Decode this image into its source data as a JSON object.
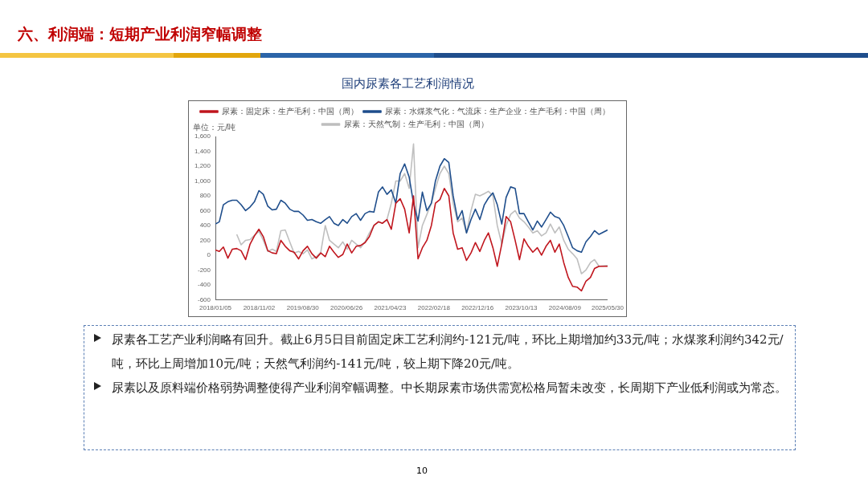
{
  "chart_data": {
    "type": "line",
    "title": "六、利润端：短期产业利润窄幅调整",
    "subtitle": "国内尿素各工艺利润情况",
    "ylabel": "单位：元/吨",
    "x": [
      "2018-01-05",
      "2018-02",
      "2018-03",
      "2018-04",
      "2018-05",
      "2018-06",
      "2018-07",
      "2018-08",
      "2018-09",
      "2018-10",
      "2018-11",
      "2018-12",
      "2019-01",
      "2019-02",
      "2019-03",
      "2019-04",
      "2019-05",
      "2019-06",
      "2019-07",
      "2019-08",
      "2019-09",
      "2019-10",
      "2019-11",
      "2019-12",
      "2020-01",
      "2020-02",
      "2020-03",
      "2020-04",
      "2020-05",
      "2020-06",
      "2020-07",
      "2020-08",
      "2020-09",
      "2020-10",
      "2020-11",
      "2020-12",
      "2021-01",
      "2021-02",
      "2021-03",
      "2021-04",
      "2021-05",
      "2021-06",
      "2021-07",
      "2021-08",
      "2021-09",
      "2021-10",
      "2021-11",
      "2021-12",
      "2022-01",
      "2022-02",
      "2022-03",
      "2022-04",
      "2022-05",
      "2022-06",
      "2022-07",
      "2022-08",
      "2022-09",
      "2022-10",
      "2022-11",
      "2022-12",
      "2023-01",
      "2023-02",
      "2023-03",
      "2023-04",
      "2023-05",
      "2023-06",
      "2023-07",
      "2023-08",
      "2023-09",
      "2023-10",
      "2023-11",
      "2023-12",
      "2024-01",
      "2024-02",
      "2024-03",
      "2024-04",
      "2024-05",
      "2024-06",
      "2024-07",
      "2024-08",
      "2024-09",
      "2024-10",
      "2024-11",
      "2024-12",
      "2025-01",
      "2025-02",
      "2025-03",
      "2025-04",
      "2025-05-30"
    ],
    "series": [
      {
        "name": "尿素：固定床：生产毛利：中国（周）",
        "color": "#c0161e",
        "values": [
          70,
          50,
          110,
          -40,
          80,
          90,
          60,
          -60,
          150,
          260,
          350,
          250,
          60,
          30,
          20,
          200,
          120,
          60,
          40,
          -50,
          60,
          120,
          20,
          -40,
          30,
          -20,
          120,
          40,
          -30,
          10,
          150,
          30,
          120,
          130,
          170,
          250,
          400,
          450,
          430,
          480,
          350,
          700,
          760,
          620,
          300,
          800,
          -50,
          100,
          200,
          400,
          700,
          750,
          900,
          800,
          300,
          80,
          100,
          -70,
          30,
          170,
          50,
          200,
          300,
          100,
          -150,
          150,
          520,
          450,
          200,
          -60,
          220,
          120,
          40,
          100,
          0,
          120,
          200,
          40,
          150,
          -100,
          -300,
          -420,
          -430,
          -480,
          -350,
          -300,
          -180,
          -150,
          -150
        ]
      },
      {
        "name": "尿素：水煤浆气化：气流床：生产企业：生产毛利：中国（周）",
        "color": "#1f4e8c",
        "values": [
          420,
          450,
          680,
          720,
          740,
          740,
          680,
          600,
          650,
          720,
          870,
          820,
          660,
          610,
          620,
          740,
          700,
          620,
          590,
          590,
          540,
          470,
          480,
          450,
          430,
          480,
          520,
          430,
          400,
          480,
          430,
          520,
          560,
          470,
          560,
          590,
          580,
          850,
          920,
          820,
          880,
          700,
          1100,
          1230,
          1050,
          700,
          460,
          850,
          600,
          700,
          1000,
          1200,
          1300,
          1250,
          800,
          480,
          600,
          300,
          480,
          620,
          480,
          680,
          770,
          840,
          680,
          420,
          780,
          920,
          900,
          560,
          560,
          450,
          340,
          460,
          380,
          480,
          580,
          520,
          500,
          400,
          250,
          100,
          60,
          40,
          180,
          250,
          330,
          280,
          340
        ]
      },
      {
        "name": "尿素：天然气制：生产毛利：中国（周）",
        "color": "#bfbfbf",
        "values": [
          null,
          null,
          null,
          null,
          null,
          280,
          140,
          200,
          210,
          270,
          320,
          200,
          50,
          80,
          50,
          330,
          340,
          180,
          30,
          50,
          20,
          70,
          -50,
          -20,
          40,
          400,
          200,
          150,
          100,
          180,
          80,
          200,
          150,
          100,
          180,
          300,
          400,
          450,
          430,
          480,
          700,
          1000,
          1000,
          1100,
          900,
          1500,
          100,
          400,
          550,
          700,
          900,
          1100,
          1200,
          1100,
          700,
          450,
          500,
          300,
          600,
          820,
          800,
          830,
          860,
          800,
          400,
          150,
          400,
          550,
          600,
          500,
          450,
          380,
          300,
          330,
          260,
          300,
          420,
          300,
          380,
          200,
          80,
          20,
          -50,
          -250,
          -200,
          -100,
          -60,
          -150,
          -140
        ]
      }
    ],
    "xlim": [
      "2018-01-05",
      "2025-05-30"
    ],
    "xticks": [
      {
        "value": "2018-01-05",
        "label": "2018/01/05"
      },
      {
        "value": "2018-11-02",
        "label": "2018/11/02"
      },
      {
        "value": "2019-08-30",
        "label": "2019/08/30"
      },
      {
        "value": "2020-06-26",
        "label": "2020/06/26"
      },
      {
        "value": "2021-04-23",
        "label": "2021/04/23"
      },
      {
        "value": "2022-02-18",
        "label": "2022/02/18"
      },
      {
        "value": "2022-12-16",
        "label": "2022/12/16"
      },
      {
        "value": "2023-10-13",
        "label": "2023/10/13"
      },
      {
        "value": "2024-08-09",
        "label": "2024/08/09"
      },
      {
        "value": "2025-05-30",
        "label": "2025/05/30"
      }
    ],
    "ylim": [
      -600,
      1600
    ],
    "yticks": [
      -600,
      -400,
      -200,
      0,
      200,
      400,
      600,
      800,
      {
        "value": 1000,
        "label": "1,000"
      },
      {
        "value": 1200,
        "label": "1,200"
      },
      {
        "value": 1400,
        "label": "1,400"
      },
      {
        "value": 1600,
        "label": "1,600"
      }
    ],
    "grid": false,
    "legend": "top",
    "marker": "none",
    "line_style": "solid",
    "annotations": [
      "尿素各工艺产业利润略有回升。截止6月5日目前固定床工艺利润约-121元/吨，环比上期增加约33元/吨；水煤浆利润约342元/吨，环比上周增加10元/吨；天然气利润约-141元/吨，较上期下降20元/吨。",
      "尿素以及原料端价格弱势调整使得产业利润窄幅调整。中长期尿素市场供需宽松格局暂未改变，长周期下产业低利润或为常态。",
      "10"
    ]
  }
}
